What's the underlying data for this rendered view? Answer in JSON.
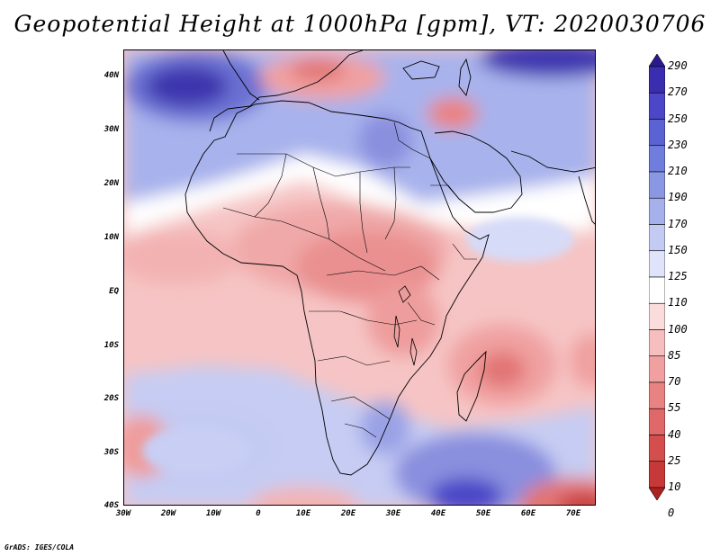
{
  "title": "Geopotential Height at 1000hPa [gpm], VT: 2020030706",
  "y_axis": {
    "ticks": [
      "40N",
      "30N",
      "20N",
      "10N",
      "EQ",
      "10S",
      "20S",
      "30S",
      "40S"
    ]
  },
  "x_axis": {
    "ticks": [
      "30W",
      "20W",
      "10W",
      "0",
      "10E",
      "20E",
      "30E",
      "40E",
      "50E",
      "60E",
      "70E"
    ]
  },
  "map": {
    "lon_range": [
      -30,
      75
    ],
    "lat_range": [
      -40,
      45
    ]
  },
  "colorbar": {
    "labels": [
      "290",
      "270",
      "250",
      "230",
      "210",
      "190",
      "170",
      "150",
      "125",
      "110",
      "100",
      "85",
      "70",
      "55",
      "40",
      "25",
      "10",
      "0"
    ],
    "colors": [
      "#2a1a8f",
      "#3b2db0",
      "#4b47c8",
      "#5b62d4",
      "#6f7ddc",
      "#8a98e4",
      "#a6b1ec",
      "#c4cbf3",
      "#e0e4fa",
      "#ffffff",
      "#fbdcdc",
      "#f6bebe",
      "#f0a0a0",
      "#e98383",
      "#e06868",
      "#d54e4e",
      "#c73838",
      "#b02020"
    ]
  },
  "credit": "GrADS: IGES/COLA"
}
